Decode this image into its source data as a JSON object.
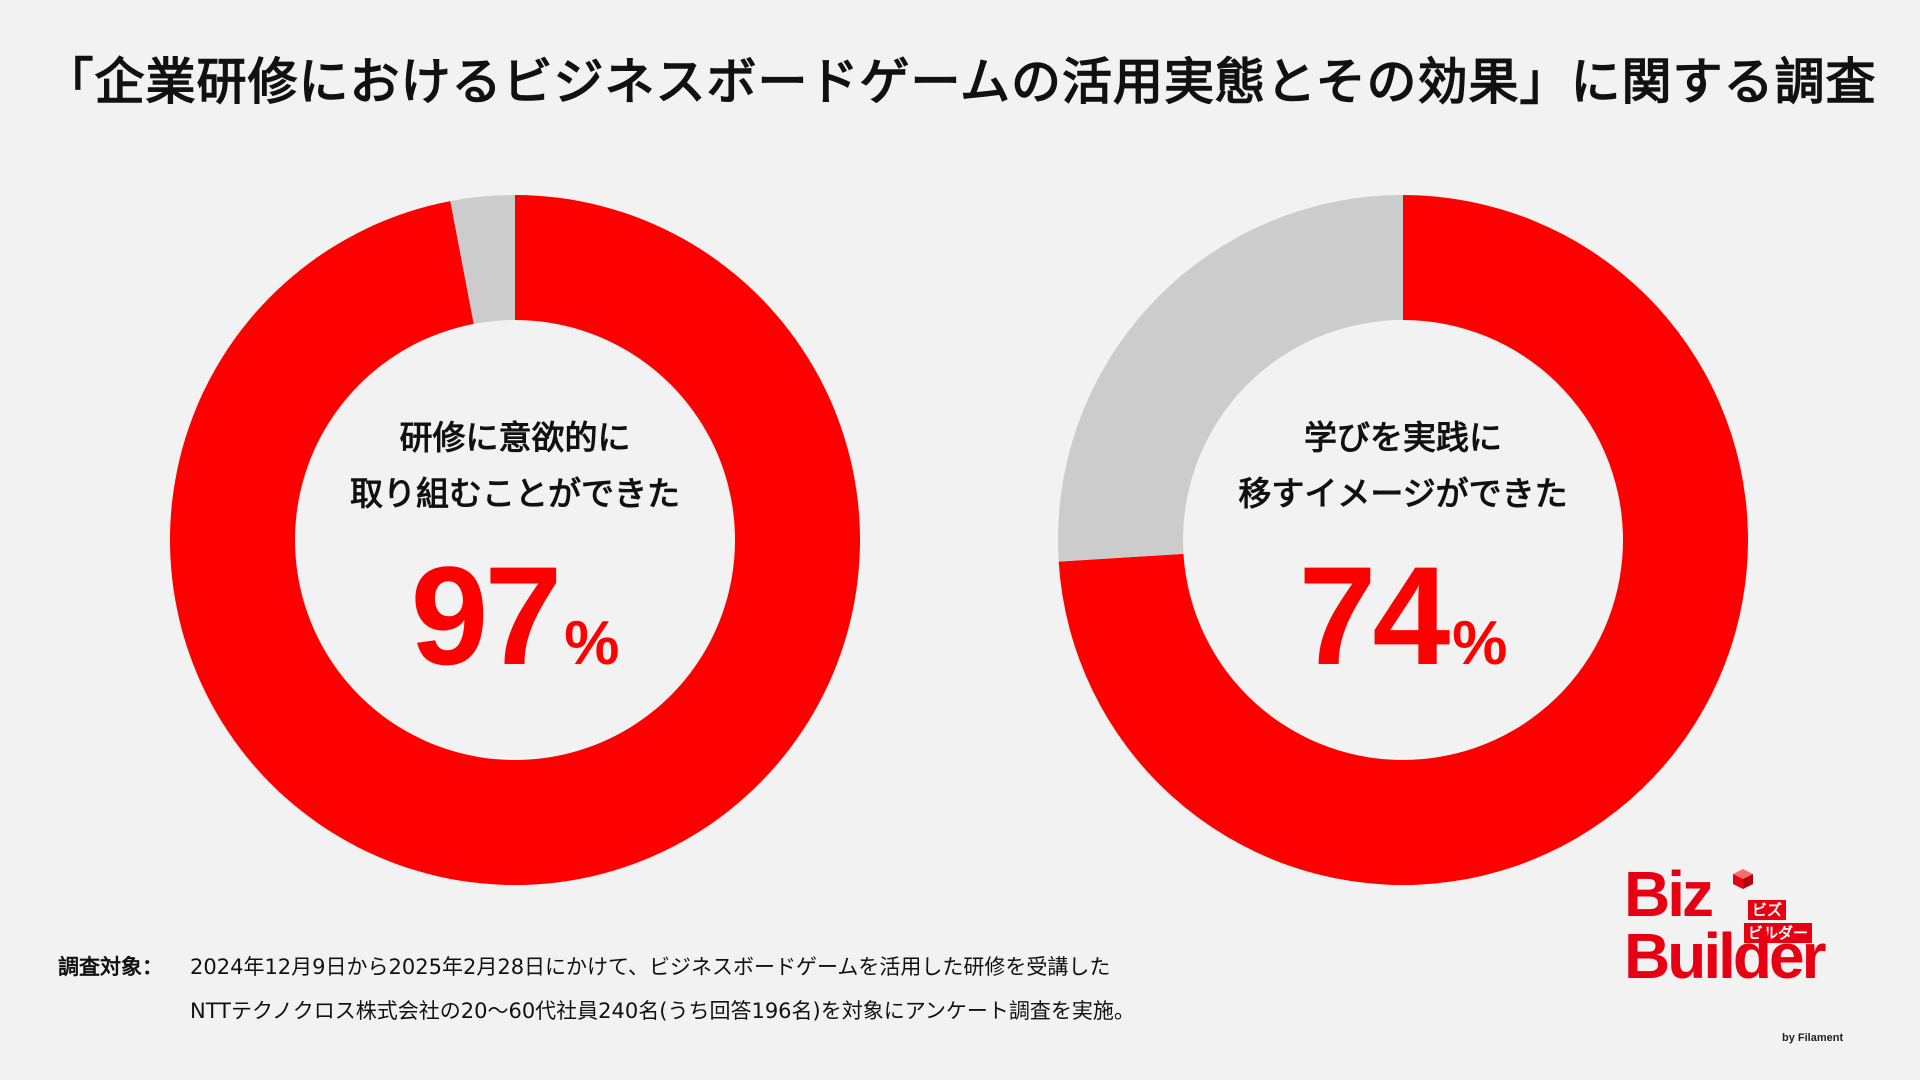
{
  "title": "「企業研修におけるビジネスボードゲームの活用実態とその効果」に関する調査",
  "colors": {
    "accent": "#ff0000",
    "remainder": "#cccccc",
    "background": "#f2f2f2"
  },
  "chart_data": [
    {
      "type": "pie",
      "label": "研修に意欲的に\n取り組むことができた",
      "value_text": "97",
      "unit": "%",
      "slices": [
        {
          "value": 97,
          "color": "#ff0000"
        },
        {
          "value": 3,
          "color": "#cccccc"
        }
      ]
    },
    {
      "type": "pie",
      "label": "学びを実践に\n移すイメージができた",
      "value_text": "74",
      "unit": "%",
      "slices": [
        {
          "value": 74,
          "color": "#ff0000"
        },
        {
          "value": 26,
          "color": "#cccccc"
        }
      ]
    }
  ],
  "footnote": {
    "label": "調査対象：",
    "line1": "2024年12月9日から2025年2月28日にかけて、ビジネスボードゲームを活用した研修を受講した",
    "line2": "NTTテクノクロス株式会社の20～60代社員240名(うち回答196名)を対象にアンケート調査を実施。"
  },
  "logo": {
    "line1": "Biz",
    "line2": "Builder",
    "kana1": "ビズ",
    "kana2": "ビルダー",
    "byline": "by Filament"
  }
}
